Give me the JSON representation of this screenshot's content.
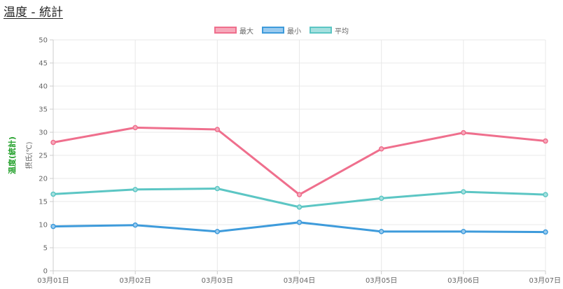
{
  "page": {
    "title": "温度 - 統計"
  },
  "chart_data": {
    "type": "line",
    "title": "",
    "xlabel": "",
    "ylabel_outer": "温度(統計)",
    "ylabel_inner": "摂氏(℃)",
    "categories": [
      "03月01日",
      "03月02日",
      "03月03日",
      "03月04日",
      "03月05日",
      "03月06日",
      "03月07日"
    ],
    "ylim": [
      0,
      50
    ],
    "yticks": [
      0,
      5,
      10,
      15,
      20,
      25,
      30,
      35,
      40,
      45,
      50
    ],
    "grid": true,
    "legend_position": "top-center",
    "series": [
      {
        "name": "最大",
        "values": [
          27.8,
          31.0,
          30.6,
          16.5,
          26.4,
          29.9,
          28.1
        ],
        "line_color": "#ef6f8d",
        "fill_color": "#f6a9bb"
      },
      {
        "name": "最小",
        "values": [
          9.6,
          9.9,
          8.5,
          10.5,
          8.5,
          8.5,
          8.4
        ],
        "line_color": "#3e9bdb",
        "fill_color": "#9acbef"
      },
      {
        "name": "平均",
        "values": [
          16.6,
          17.6,
          17.8,
          13.8,
          15.7,
          17.1,
          16.5
        ],
        "line_color": "#5cc6c4",
        "fill_color": "#a6e0df"
      }
    ]
  }
}
